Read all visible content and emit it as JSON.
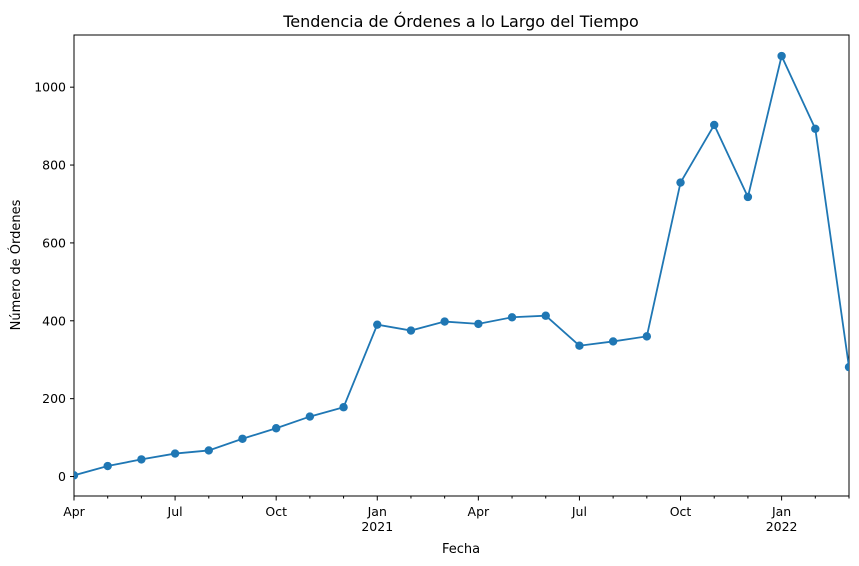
{
  "chart_data": {
    "type": "line",
    "title": "Tendencia de Órdenes a lo Largo del Tiempo",
    "xlabel": "Fecha",
    "ylabel": "Número de Órdenes",
    "x": [
      "2020-04",
      "2020-05",
      "2020-06",
      "2020-07",
      "2020-08",
      "2020-09",
      "2020-10",
      "2020-11",
      "2020-12",
      "2021-01",
      "2021-02",
      "2021-03",
      "2021-04",
      "2021-05",
      "2021-06",
      "2021-07",
      "2021-08",
      "2021-09",
      "2021-10",
      "2021-11",
      "2021-12",
      "2022-01",
      "2022-02",
      "2022-03"
    ],
    "series": [
      {
        "values": [
          3,
          27,
          44,
          59,
          67,
          97,
          124,
          154,
          178,
          390,
          375,
          398,
          392,
          409,
          413,
          336,
          347,
          360,
          755,
          903,
          718,
          1080,
          893,
          281
        ],
        "color": "#1f77b4"
      }
    ],
    "ylim": [
      -50,
      1134
    ],
    "yticks": [
      0,
      200,
      400,
      600,
      800,
      1000
    ],
    "xtick_labels": [
      {
        "label": "Apr",
        "year": ""
      },
      {
        "label": "Jul",
        "year": ""
      },
      {
        "label": "Oct",
        "year": ""
      },
      {
        "label": "Jan",
        "year": "2021"
      },
      {
        "label": "Apr",
        "year": ""
      },
      {
        "label": "Jul",
        "year": ""
      },
      {
        "label": "Oct",
        "year": ""
      },
      {
        "label": "Jan",
        "year": "2022"
      }
    ],
    "grid": false,
    "legend": "none"
  }
}
